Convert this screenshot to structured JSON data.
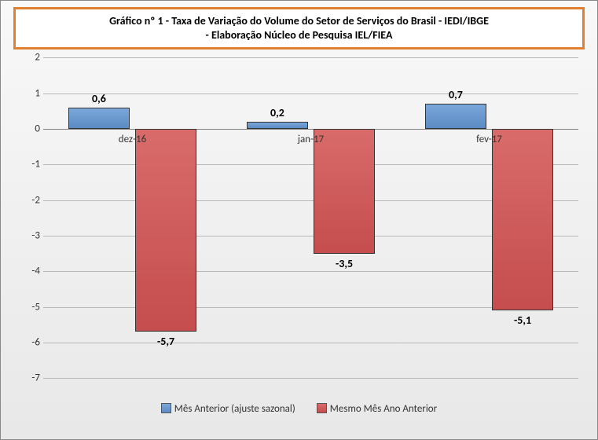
{
  "chart": {
    "type": "bar",
    "title_line1": "Gráfico nº 1 - Taxa de Variação do Volume do Setor de Serviços do Brasil - IEDI/IBGE",
    "title_line2": "- Elaboração Núcleo de Pesquisa IEL/FIEA",
    "title_fontsize": 14,
    "title_border_color": "#e08030",
    "categories": [
      "dez-16",
      "jan-17",
      "fev-17"
    ],
    "series": [
      {
        "name": "Mês Anterior (ajuste sazonal)",
        "color_top": "#7ba7d9",
        "color_bottom": "#5b8bc4",
        "values": [
          0.6,
          0.2,
          0.7
        ],
        "labels": [
          "0,6",
          "0,2",
          "0,7"
        ]
      },
      {
        "name": "Mesmo Mês Ano Anterior",
        "color_top": "#d96b6b",
        "color_bottom": "#c54d4d",
        "values": [
          -5.7,
          -3.5,
          -5.1
        ],
        "labels": [
          "-5,7",
          "-3,5",
          "-5,1"
        ]
      }
    ],
    "ylim": [
      -7,
      2
    ],
    "ytick_step": 1,
    "yticks": [
      2,
      1,
      0,
      -1,
      -2,
      -3,
      -4,
      -5,
      -6,
      -7
    ],
    "grid_color": "#b8b8b8",
    "axis_color": "#808080",
    "background_top": "#f8f8f8",
    "background_bottom": "#e8e8e8",
    "bar_border_color": "#333333",
    "bar_group_width_pct": 24,
    "bar_gap_pct": 1,
    "label_fontsize": 13,
    "value_fontsize": 14,
    "cat_label_fontsize": 13
  }
}
